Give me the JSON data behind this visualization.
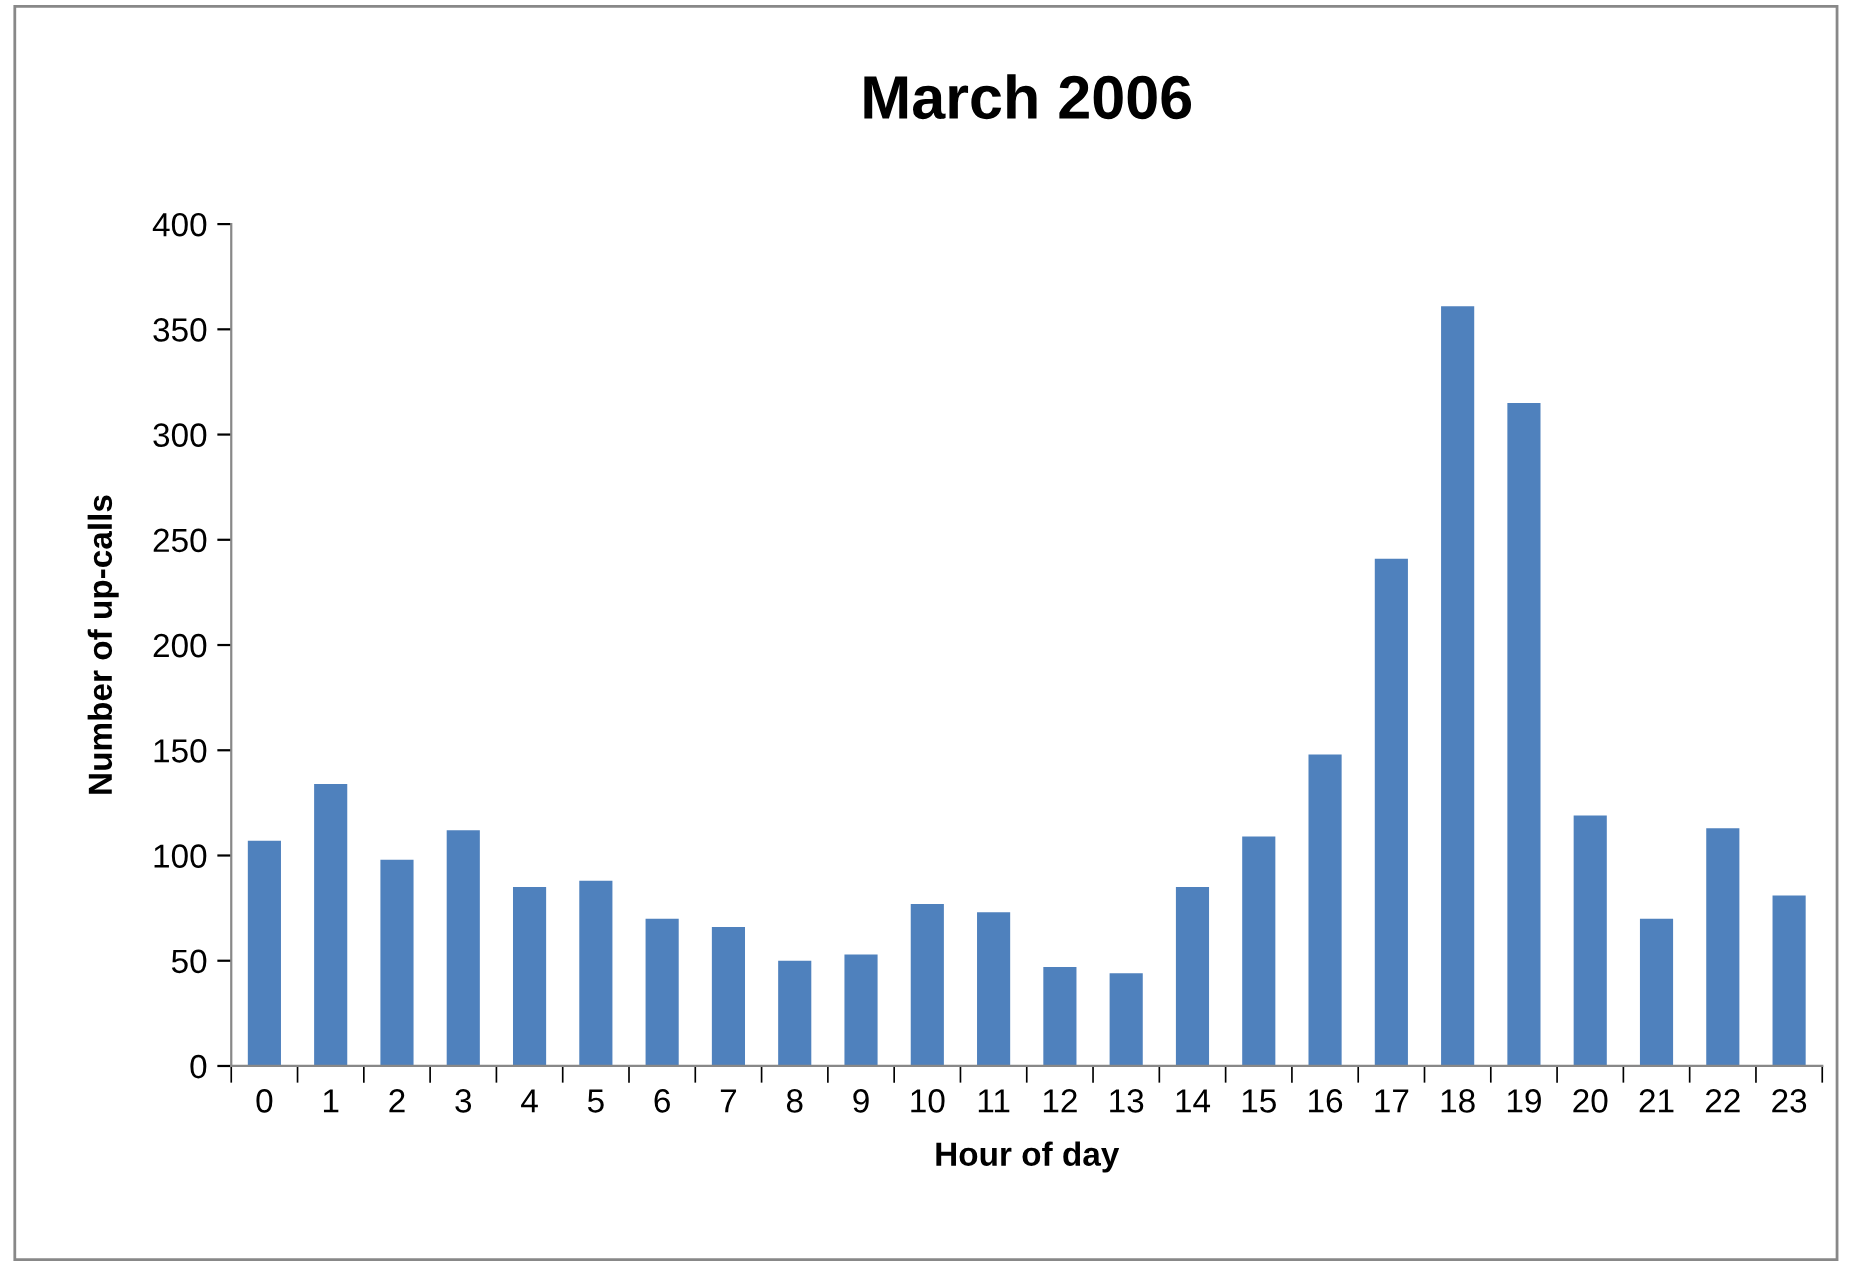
{
  "chart_data": {
    "type": "bar",
    "title": "March 2006",
    "xlabel": "Hour of day",
    "ylabel": "Number of up-calls",
    "categories": [
      "0",
      "1",
      "2",
      "3",
      "4",
      "5",
      "6",
      "7",
      "8",
      "9",
      "10",
      "11",
      "12",
      "13",
      "14",
      "15",
      "16",
      "17",
      "18",
      "19",
      "20",
      "21",
      "22",
      "23"
    ],
    "values": [
      107,
      134,
      98,
      112,
      85,
      88,
      70,
      66,
      50,
      53,
      77,
      73,
      47,
      44,
      85,
      109,
      148,
      241,
      361,
      315,
      119,
      70,
      113,
      81
    ],
    "color": "#4f81bd",
    "ylim": [
      0,
      400
    ],
    "yticks": [
      0,
      50,
      100,
      150,
      200,
      250,
      300,
      350,
      400
    ],
    "grid": false,
    "legend": false
  }
}
